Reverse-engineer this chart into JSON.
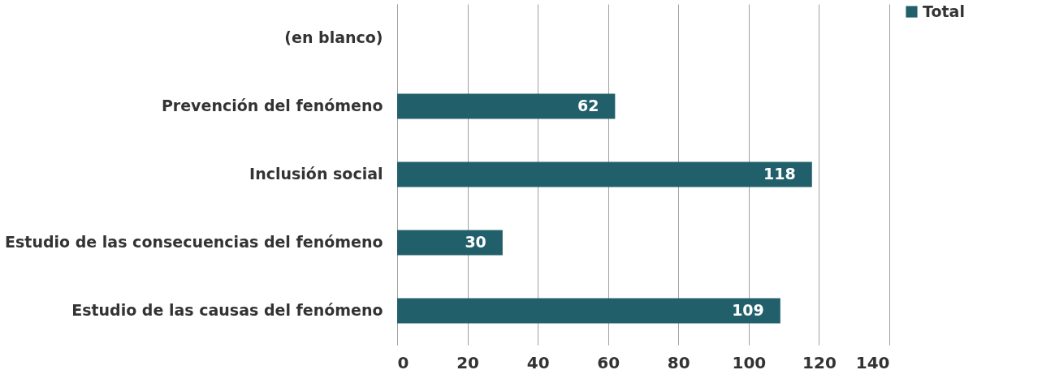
{
  "chart_data": {
    "type": "bar",
    "orientation": "horizontal",
    "categories": [
      "(en blanco)",
      "Prevención del fenómeno",
      "Inclusión social",
      "Estudio de las consecuencias del fenómeno",
      "Estudio de las causas del fenómeno"
    ],
    "series": [
      {
        "name": "Total",
        "color": "#21606a",
        "values": [
          null,
          62,
          118,
          30,
          109
        ]
      }
    ],
    "xlim": [
      0,
      140
    ],
    "xticks": [
      0,
      20,
      40,
      60,
      80,
      100,
      120,
      140
    ],
    "grid": "x",
    "legend": "right",
    "data_labels": true
  }
}
